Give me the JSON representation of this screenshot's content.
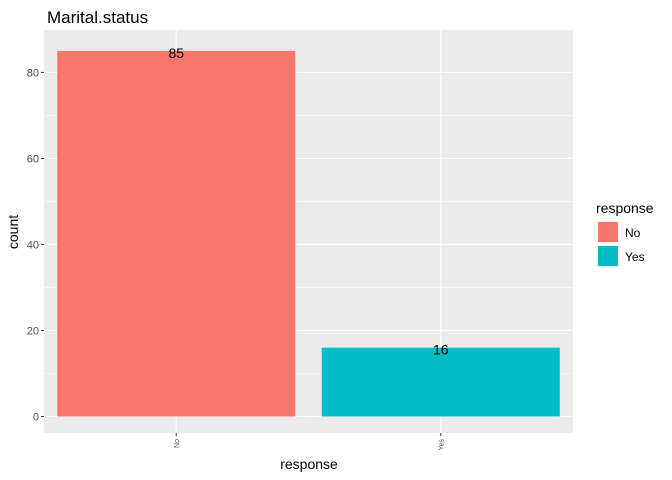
{
  "chart_data": {
    "type": "bar",
    "title": "Marital.status",
    "xlabel": "response",
    "ylabel": "count",
    "categories": [
      "No",
      "Yes"
    ],
    "values": [
      85,
      16
    ],
    "data_labels": [
      "85",
      "16"
    ],
    "colors": [
      "#F8766D",
      "#00BFC4"
    ],
    "ylim": [
      0,
      89.2
    ],
    "yticks": [
      0,
      20,
      40,
      60,
      80
    ],
    "ytick_labels": [
      "0",
      "20",
      "40",
      "60",
      "80"
    ],
    "grid": true,
    "legend": {
      "title": "response",
      "position": "right",
      "entries": [
        {
          "label": "No",
          "color": "#F8766D"
        },
        {
          "label": "Yes",
          "color": "#00BFC4"
        }
      ]
    },
    "panel_background": "#EBEBEB",
    "grid_color": "#FFFFFF"
  }
}
